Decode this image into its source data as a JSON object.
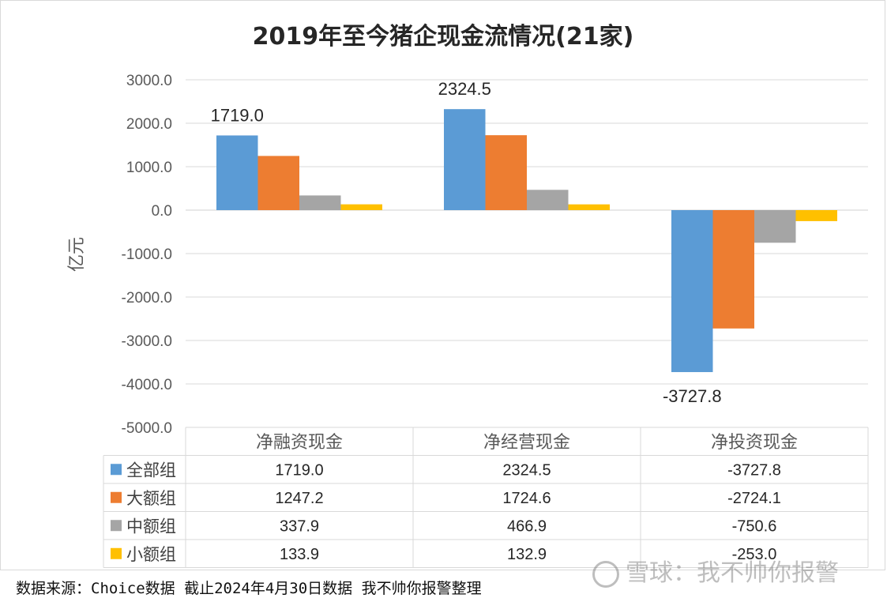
{
  "chart_data": {
    "type": "bar",
    "title": "2019年至今猪企现金流情况(21家)",
    "ylabel": "亿元",
    "ylim": [
      -5000,
      3000
    ],
    "yticks": [
      "3000.0",
      "2000.0",
      "1000.0",
      "0.0",
      "-1000.0",
      "-2000.0",
      "-3000.0",
      "-4000.0",
      "-5000.0"
    ],
    "categories": [
      "净融资现金",
      "净经营现金",
      "净投资现金"
    ],
    "series": [
      {
        "name": "全部组",
        "color": "#5b9bd5",
        "values": [
          1719.0,
          2324.5,
          -3727.8
        ],
        "labels": [
          "1719.0",
          "2324.5",
          "-3727.8"
        ]
      },
      {
        "name": "大额组",
        "color": "#ed7d31",
        "values": [
          1247.2,
          1724.6,
          -2724.1
        ],
        "labels": [
          "1247.2",
          "1724.6",
          "-2724.1"
        ]
      },
      {
        "name": "中额组",
        "color": "#a5a5a5",
        "values": [
          337.9,
          466.9,
          -750.6
        ],
        "labels": [
          "337.9",
          "466.9",
          "-750.6"
        ]
      },
      {
        "name": "小额组",
        "color": "#ffc000",
        "values": [
          133.9,
          132.9,
          -253.0
        ],
        "labels": [
          "133.9",
          "132.9",
          "-253.0"
        ]
      }
    ],
    "data_labels": [
      "1719.0",
      "2324.5",
      "-3727.8"
    ],
    "grid": true,
    "legend": "data-table"
  },
  "footer": {
    "source": "数据来源：Choice数据  截止2024年4月30日数据 我不帅你报警整理",
    "watermark": "雪球：我不帅你报警"
  }
}
